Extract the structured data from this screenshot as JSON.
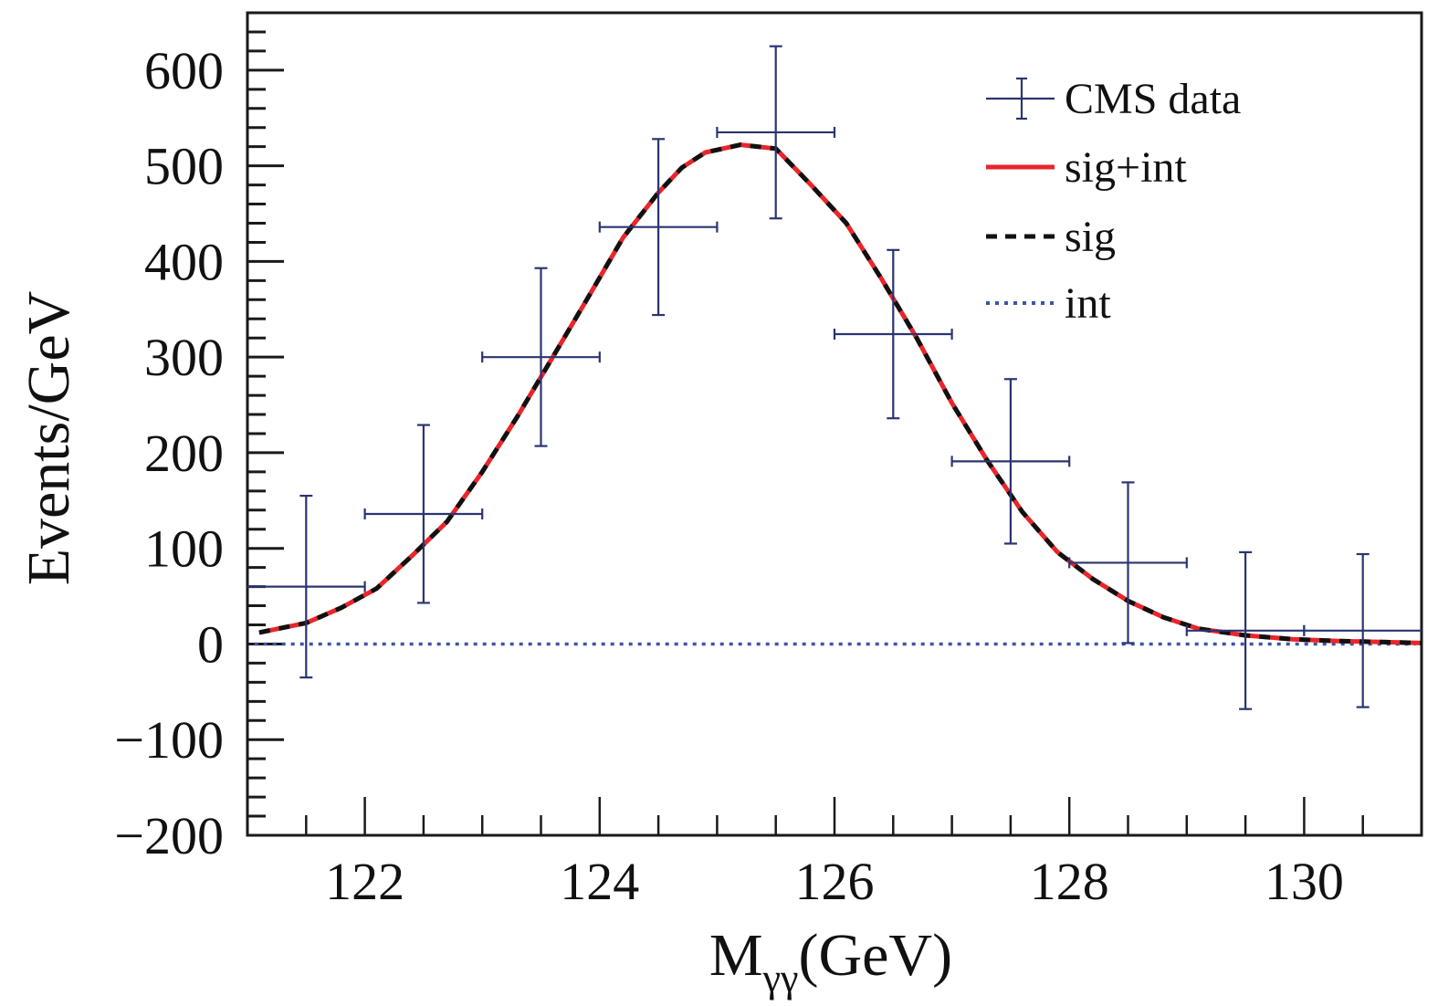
{
  "chart_data": {
    "type": "scatter",
    "title": "",
    "xlabel": "M",
    "xlabel_subscript": "γγ",
    "xlabel_suffix": "(GeV)",
    "ylabel": "Events/GeV",
    "xlim": [
      121.0,
      131.0
    ],
    "ylim": [
      -200,
      660
    ],
    "x_ticks": [
      122,
      124,
      126,
      128,
      130
    ],
    "x_tick_labels": [
      "122",
      "124",
      "126",
      "128",
      "130"
    ],
    "x_minor_step": 0.5,
    "y_ticks": [
      -200,
      -100,
      0,
      100,
      200,
      300,
      400,
      500,
      600
    ],
    "y_tick_labels": [
      "−200",
      "−100",
      "0",
      "100",
      "200",
      "300",
      "400",
      "500",
      "600"
    ],
    "y_minor_step": 20,
    "grid": false,
    "legend_position": "top-right",
    "legend": [
      {
        "label": "CMS data",
        "style": "errorbar",
        "color": "#2b3470"
      },
      {
        "label": "sig+int",
        "style": "solid",
        "color": "#e8262b"
      },
      {
        "label": "sig",
        "style": "dashed",
        "color": "#111111"
      },
      {
        "label": "int",
        "style": "dotted",
        "color": "#3a56a8"
      }
    ],
    "series": [
      {
        "name": "CMS data",
        "type": "errorbar",
        "color": "#2b3470",
        "x": [
          121.5,
          122.5,
          123.5,
          124.5,
          125.5,
          126.5,
          127.5,
          128.5,
          129.5,
          130.5
        ],
        "y": [
          60,
          136,
          300,
          436,
          535,
          324,
          191,
          85,
          14,
          14
        ],
        "x_err": 0.5,
        "y_err": [
          95,
          93,
          93,
          92,
          90,
          88,
          86,
          84,
          82,
          80
        ]
      },
      {
        "name": "sig+int",
        "type": "line",
        "color": "#e8262b",
        "x": [
          121.1,
          121.5,
          121.8,
          122.1,
          122.4,
          122.7,
          123.0,
          123.3,
          123.6,
          123.9,
          124.2,
          124.5,
          124.7,
          124.9,
          125.2,
          125.5,
          125.8,
          126.1,
          126.4,
          126.7,
          127.0,
          127.3,
          127.6,
          127.9,
          128.2,
          128.5,
          128.8,
          129.1,
          129.5,
          129.9,
          130.3,
          130.7,
          131.0
        ],
        "y": [
          12,
          22,
          38,
          58,
          92,
          128,
          180,
          238,
          300,
          362,
          425,
          472,
          498,
          514,
          522,
          518,
          480,
          440,
          382,
          320,
          252,
          192,
          138,
          96,
          68,
          45,
          28,
          16,
          9,
          5,
          3,
          2,
          1
        ]
      },
      {
        "name": "sig",
        "type": "line",
        "style": "dashed",
        "color": "#111111",
        "x": [
          121.1,
          121.5,
          121.8,
          122.1,
          122.4,
          122.7,
          123.0,
          123.3,
          123.6,
          123.9,
          124.2,
          124.5,
          124.7,
          124.9,
          125.2,
          125.5,
          125.8,
          126.1,
          126.4,
          126.7,
          127.0,
          127.3,
          127.6,
          127.9,
          128.2,
          128.5,
          128.8,
          129.1,
          129.5,
          129.9,
          130.3,
          130.7,
          131.0
        ],
        "y": [
          12,
          22,
          38,
          58,
          92,
          128,
          180,
          238,
          300,
          362,
          425,
          472,
          498,
          514,
          522,
          518,
          480,
          440,
          382,
          320,
          252,
          192,
          138,
          96,
          68,
          45,
          28,
          16,
          9,
          5,
          3,
          2,
          1
        ]
      },
      {
        "name": "int",
        "type": "line",
        "style": "dotted",
        "color": "#3a56a8",
        "x": [
          121.0,
          131.0
        ],
        "y": [
          0,
          0
        ]
      }
    ]
  }
}
